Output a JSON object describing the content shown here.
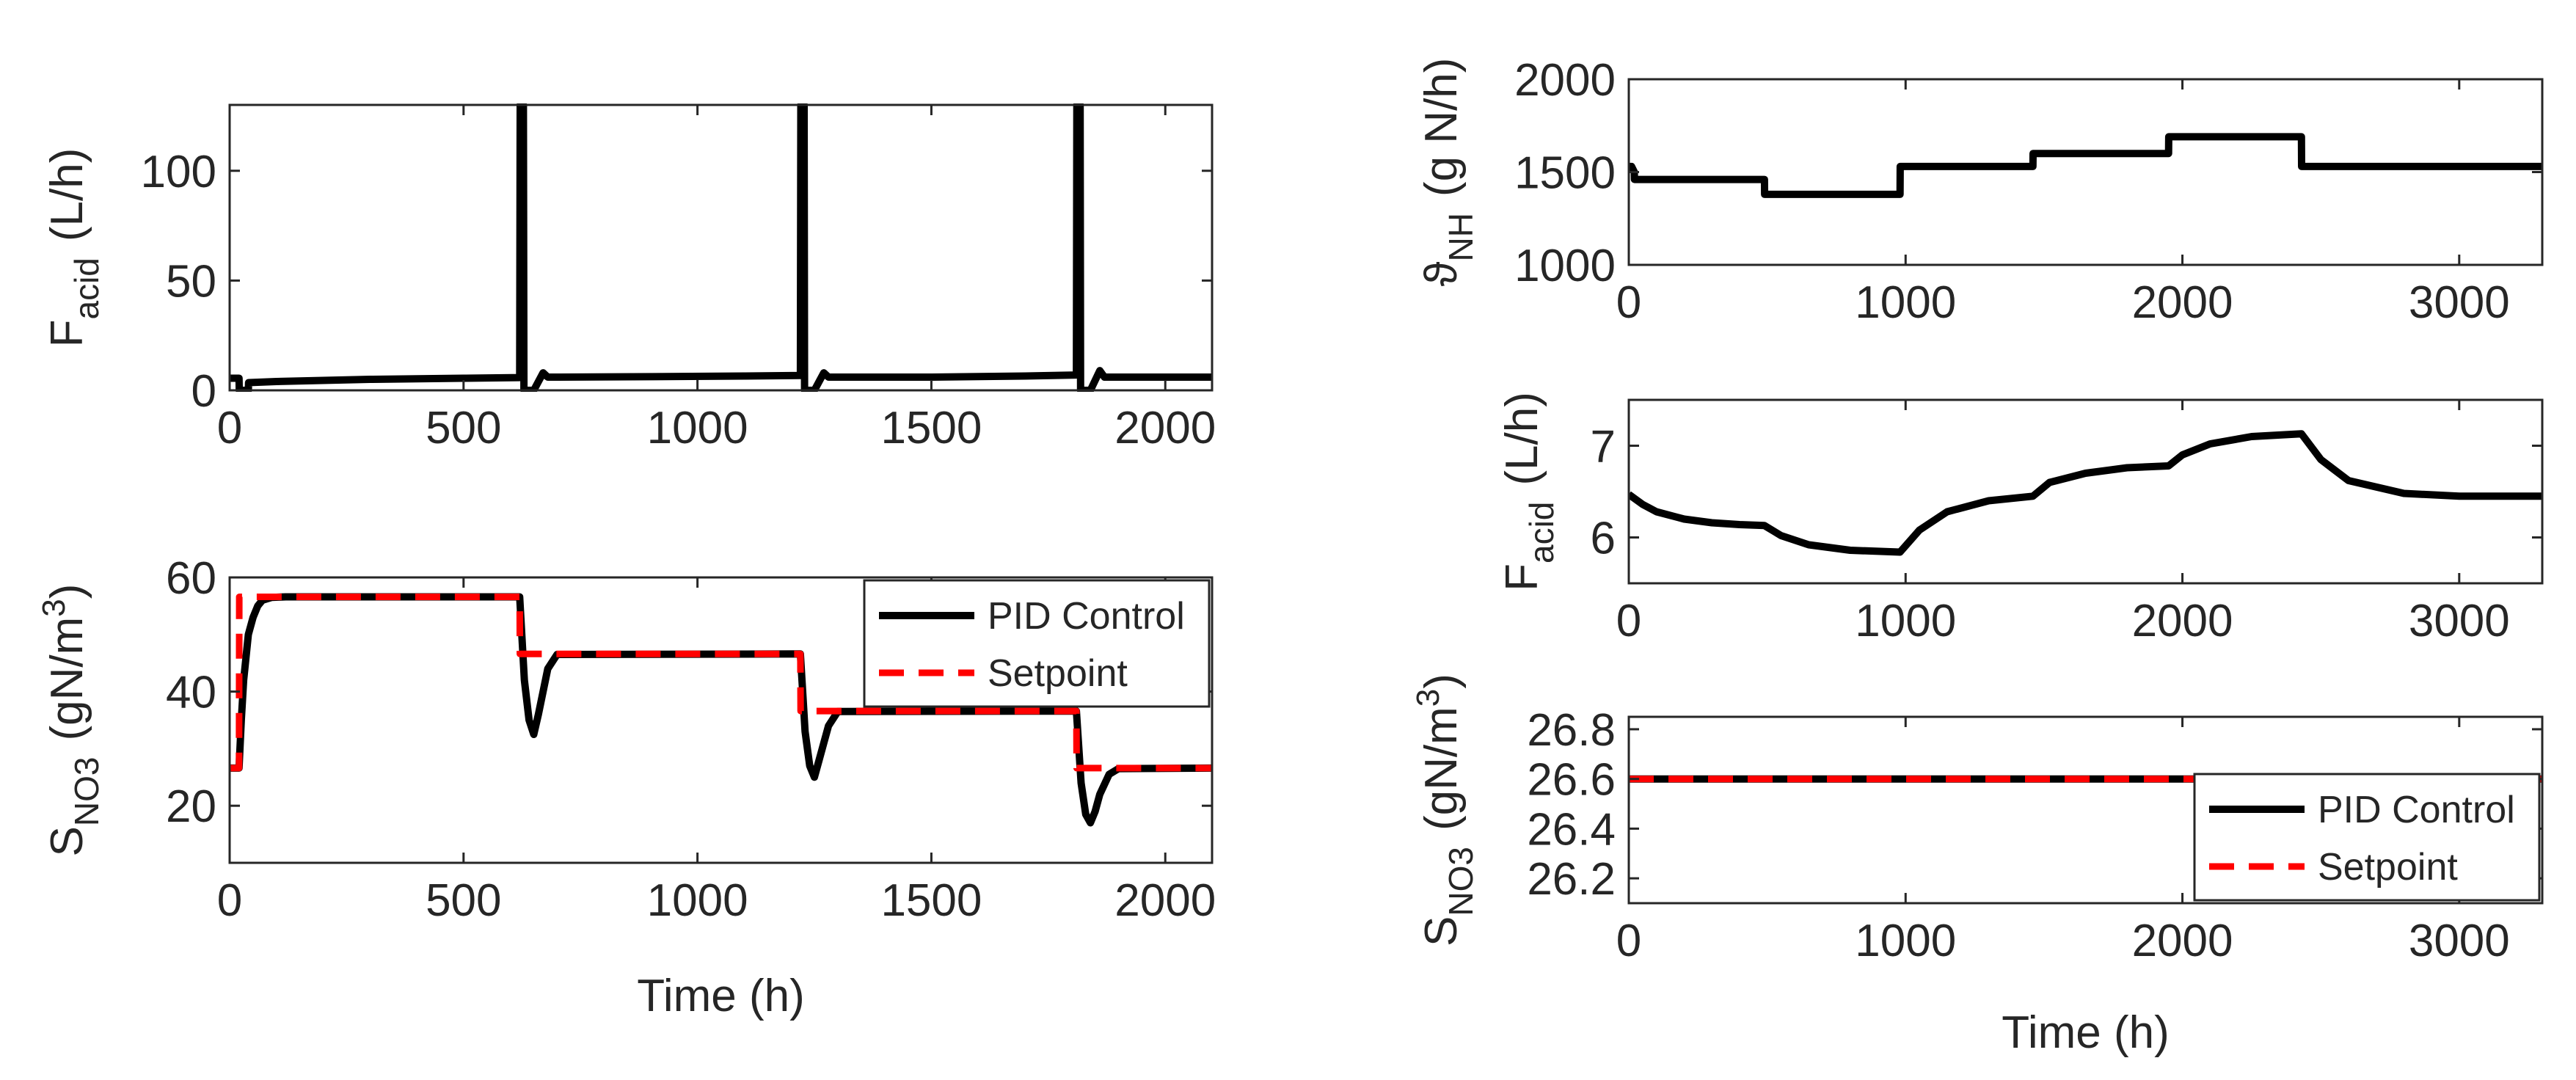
{
  "figure": {
    "background": "#ffffff",
    "text_color": "#262626"
  },
  "chart_data": [
    {
      "id": "top-left",
      "type": "line",
      "title": "",
      "xlabel": "",
      "ylabel": {
        "main": "F",
        "sub": "acid",
        "unit": "(L/h)"
      },
      "xlim": [
        0,
        2100
      ],
      "ylim": [
        0,
        130
      ],
      "xticks": [
        0,
        500,
        1000,
        1500,
        2000
      ],
      "yticks": [
        0,
        50,
        100
      ],
      "grid": false,
      "legend": null,
      "series": [
        {
          "name": "F_acid",
          "color": "#000000",
          "style": "solid",
          "x": [
            0,
            20,
            20.5,
            40,
            40.5,
            100,
            300,
            500,
            620,
            621,
            628,
            629,
            650,
            670,
            680,
            700,
            900,
            1100,
            1220,
            1221,
            1228,
            1229,
            1250,
            1270,
            1280,
            1300,
            1500,
            1700,
            1810,
            1811,
            1818,
            1819,
            1840,
            1860,
            1870,
            1890,
            2100
          ],
          "y": [
            5.5,
            5.5,
            0,
            0,
            3.5,
            4,
            5,
            5.5,
            5.8,
            130,
            130,
            0,
            0,
            8,
            6,
            6,
            6.2,
            6.5,
            6.8,
            130,
            130,
            0,
            0,
            8,
            6,
            6,
            6,
            6.5,
            7,
            130,
            130,
            0,
            0,
            9,
            6,
            6,
            6
          ]
        }
      ]
    },
    {
      "id": "bottom-left",
      "type": "line",
      "title": "",
      "xlabel": "Time (h)",
      "ylabel": {
        "main": "S",
        "sub": "NO3",
        "unit": "(gN/m",
        "sup": "3",
        "close": ")"
      },
      "xlim": [
        0,
        2100
      ],
      "ylim": [
        10,
        60
      ],
      "xticks": [
        0,
        500,
        1000,
        1500,
        2000
      ],
      "yticks": [
        20,
        40,
        60
      ],
      "grid": false,
      "legend": {
        "location": "top-right",
        "entries": [
          "PID Control",
          "Setpoint"
        ]
      },
      "series": [
        {
          "name": "PID Control",
          "color": "#000000",
          "style": "solid",
          "x": [
            0,
            20,
            25,
            30,
            40,
            50,
            60,
            70,
            90,
            120,
            620,
            630,
            640,
            650,
            660,
            680,
            700,
            1220,
            1230,
            1240,
            1250,
            1260,
            1280,
            1300,
            1810,
            1820,
            1830,
            1840,
            1850,
            1860,
            1880,
            1900,
            2100
          ],
          "y": [
            26.6,
            26.6,
            35,
            42,
            50,
            53,
            55,
            56,
            56.5,
            56.6,
            56.6,
            42,
            35,
            32.5,
            36,
            44,
            46.5,
            46.6,
            33,
            27,
            25,
            28,
            34,
            36.5,
            36.6,
            24,
            18.5,
            17,
            19,
            22,
            25.5,
            26.5,
            26.6
          ]
        },
        {
          "name": "Setpoint",
          "color": "#ff0000",
          "style": "dashed",
          "x": [
            0,
            20,
            20.5,
            620,
            620.5,
            1220,
            1220.5,
            1810,
            1810.5,
            2100
          ],
          "y": [
            26.6,
            26.6,
            56.6,
            56.6,
            46.6,
            46.6,
            36.6,
            36.6,
            26.6,
            26.6
          ]
        }
      ]
    },
    {
      "id": "top-right",
      "type": "line",
      "title": "",
      "xlabel": "",
      "ylabel": {
        "main": "ϑ",
        "sub": "NH",
        "unit": "(g N/h)"
      },
      "xlim": [
        0,
        3300
      ],
      "ylim": [
        1000,
        2000
      ],
      "xticks": [
        0,
        1000,
        2000,
        3000
      ],
      "yticks": [
        1000,
        1500,
        2000
      ],
      "grid": false,
      "legend": null,
      "series": [
        {
          "name": "theta_NH",
          "color": "#000000",
          "style": "solid",
          "x": [
            0,
            10,
            20,
            20.5,
            490,
            490.5,
            980,
            980.5,
            1460,
            1460.5,
            1950,
            1950.5,
            2430,
            2430.5,
            3300
          ],
          "y": [
            1530,
            1530,
            1500,
            1460,
            1460,
            1380,
            1380,
            1530,
            1530,
            1600,
            1600,
            1690,
            1690,
            1530,
            1530
          ]
        }
      ]
    },
    {
      "id": "middle-right",
      "type": "line",
      "title": "",
      "xlabel": "",
      "ylabel": {
        "main": "F",
        "sub": "acid",
        "unit": "(L/h)"
      },
      "xlim": [
        0,
        3300
      ],
      "ylim": [
        5.5,
        7.5
      ],
      "xticks": [
        0,
        1000,
        2000,
        3000
      ],
      "yticks": [
        6,
        7
      ],
      "grid": false,
      "legend": null,
      "series": [
        {
          "name": "F_acid",
          "color": "#000000",
          "style": "solid",
          "x": [
            0,
            50,
            100,
            200,
            300,
            400,
            490,
            550,
            650,
            800,
            980,
            1050,
            1150,
            1300,
            1460,
            1520,
            1650,
            1800,
            1950,
            2000,
            2100,
            2250,
            2430,
            2500,
            2600,
            2800,
            3000,
            3300
          ],
          "y": [
            6.47,
            6.36,
            6.28,
            6.2,
            6.16,
            6.14,
            6.13,
            6.02,
            5.92,
            5.86,
            5.84,
            6.08,
            6.28,
            6.4,
            6.45,
            6.6,
            6.7,
            6.76,
            6.78,
            6.9,
            7.02,
            7.1,
            7.13,
            6.85,
            6.62,
            6.48,
            6.45,
            6.45
          ]
        }
      ]
    },
    {
      "id": "bottom-right",
      "type": "line",
      "title": "",
      "xlabel": "Time (h)",
      "ylabel": {
        "main": "S",
        "sub": "NO3",
        "unit": "(gN/m",
        "sup": "3",
        "close": ")"
      },
      "xlim": [
        0,
        3300
      ],
      "ylim": [
        26.1,
        26.85
      ],
      "xticks": [
        0,
        1000,
        2000,
        3000
      ],
      "yticks": [
        26.2,
        26.4,
        26.6,
        26.8
      ],
      "ytick_labels": [
        "26.2",
        "26.4",
        "26.6",
        "26.8"
      ],
      "grid": false,
      "legend": {
        "location": "bottom-right",
        "entries": [
          "PID Control",
          "Setpoint"
        ]
      },
      "series": [
        {
          "name": "PID Control",
          "color": "#000000",
          "style": "solid",
          "x": [
            0,
            3300
          ],
          "y": [
            26.6,
            26.6
          ]
        },
        {
          "name": "Setpoint",
          "color": "#ff0000",
          "style": "dashed",
          "x": [
            0,
            3300
          ],
          "y": [
            26.6,
            26.6
          ]
        }
      ]
    }
  ]
}
